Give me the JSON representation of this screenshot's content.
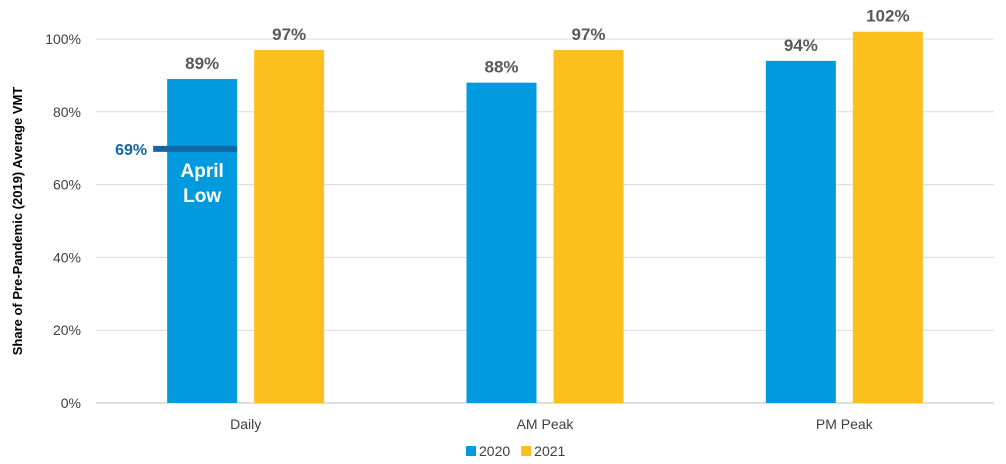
{
  "chart_data": {
    "type": "bar",
    "categories": [
      "Daily",
      "AM Peak",
      "PM Peak"
    ],
    "series": [
      {
        "name": "2020",
        "values": [
          89,
          88,
          94
        ],
        "labels": [
          "89%",
          "88%",
          "94%"
        ],
        "color": "#009ADE"
      },
      {
        "name": "2021",
        "values": [
          97,
          97,
          102
        ],
        "labels": [
          "97%",
          "97%",
          "102%"
        ],
        "color": "#FBC01E"
      }
    ],
    "ylabel": "Share of Pre-Pandemic (2019) Average VMT",
    "xlabel": "",
    "ylim": [
      0,
      100
    ],
    "yticks": [
      {
        "value": 0,
        "label": "0%"
      },
      {
        "value": 20,
        "label": "20%"
      },
      {
        "value": 40,
        "label": "40%"
      },
      {
        "value": 60,
        "label": "60%"
      },
      {
        "value": 80,
        "label": "80%"
      },
      {
        "value": 100,
        "label": "100%"
      }
    ],
    "grid": true,
    "legend_position": "bottom-center",
    "annotation": {
      "category": "Daily",
      "series": "2020",
      "value": 69,
      "value_label": "69%",
      "text_lines": [
        "April",
        "Low"
      ],
      "color": "#1566A5"
    }
  }
}
